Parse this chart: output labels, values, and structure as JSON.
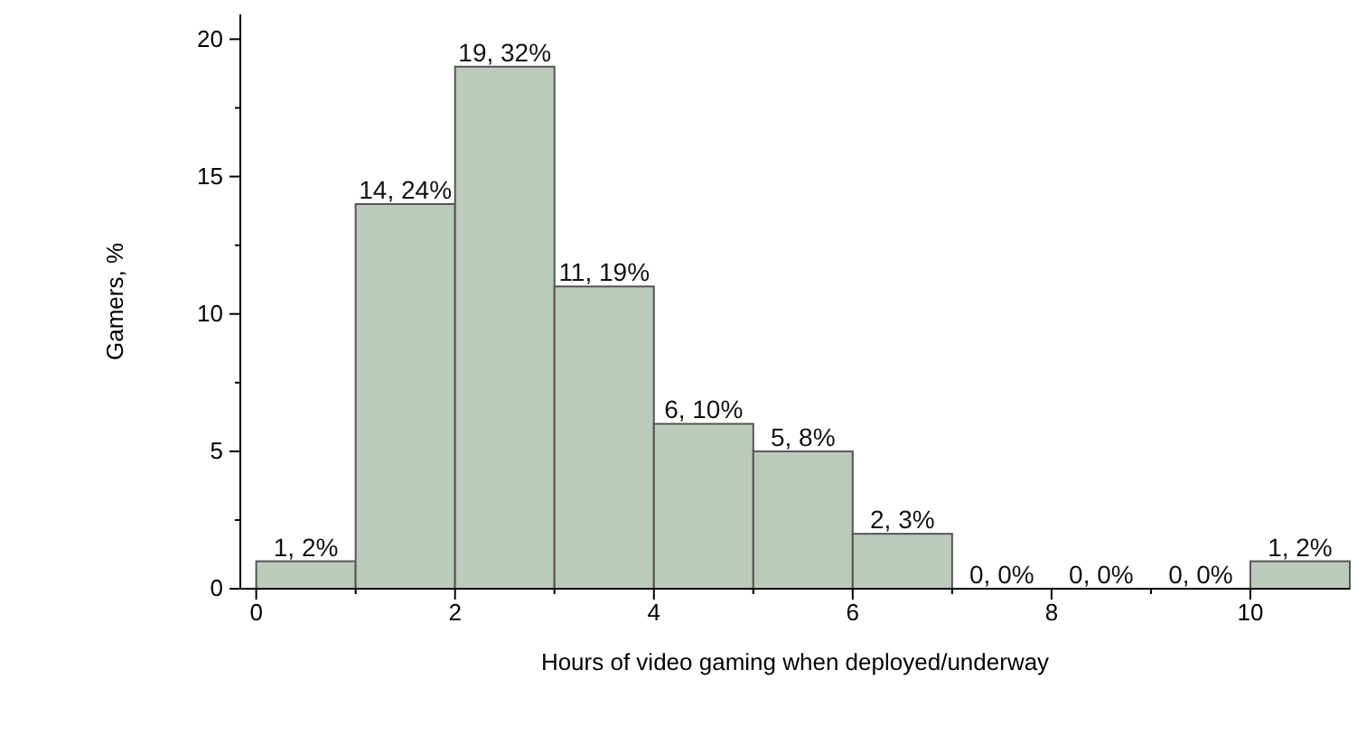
{
  "chart_data": {
    "type": "histogram",
    "xlabel": "Hours of video gaming when deployed/underway",
    "ylabel": "Gamers, %",
    "bins": [
      0,
      1,
      2,
      3,
      4,
      5,
      6,
      7,
      8,
      9,
      10,
      11
    ],
    "values": [
      1,
      14,
      19,
      11,
      6,
      5,
      2,
      0,
      0,
      0,
      1
    ],
    "value_labels": [
      "1, 2%",
      "14, 24%",
      "19, 32%",
      "11, 19%",
      "6, 10%",
      "5, 8%",
      "2, 3%",
      "0, 0%",
      "0, 0%",
      "0, 0%",
      "1, 2%"
    ],
    "color": "#bccabb",
    "xlim": [
      -0.16,
      11
    ],
    "ylim": [
      0,
      20.9
    ],
    "xticks": [
      0,
      {
        "value": 1,
        "label": null
      },
      2,
      {
        "value": 3,
        "label": null
      },
      4,
      {
        "value": 5,
        "label": null
      },
      6,
      {
        "value": 7,
        "label": null
      },
      8,
      {
        "value": 9,
        "label": null
      },
      10
    ],
    "yticks": [
      0,
      {
        "value": 2.5,
        "label": null
      },
      5,
      {
        "value": 7.5,
        "label": null
      },
      10,
      {
        "value": 12.5,
        "label": null
      },
      15,
      {
        "value": 17.5,
        "label": null
      },
      20
    ],
    "grid": false
  }
}
